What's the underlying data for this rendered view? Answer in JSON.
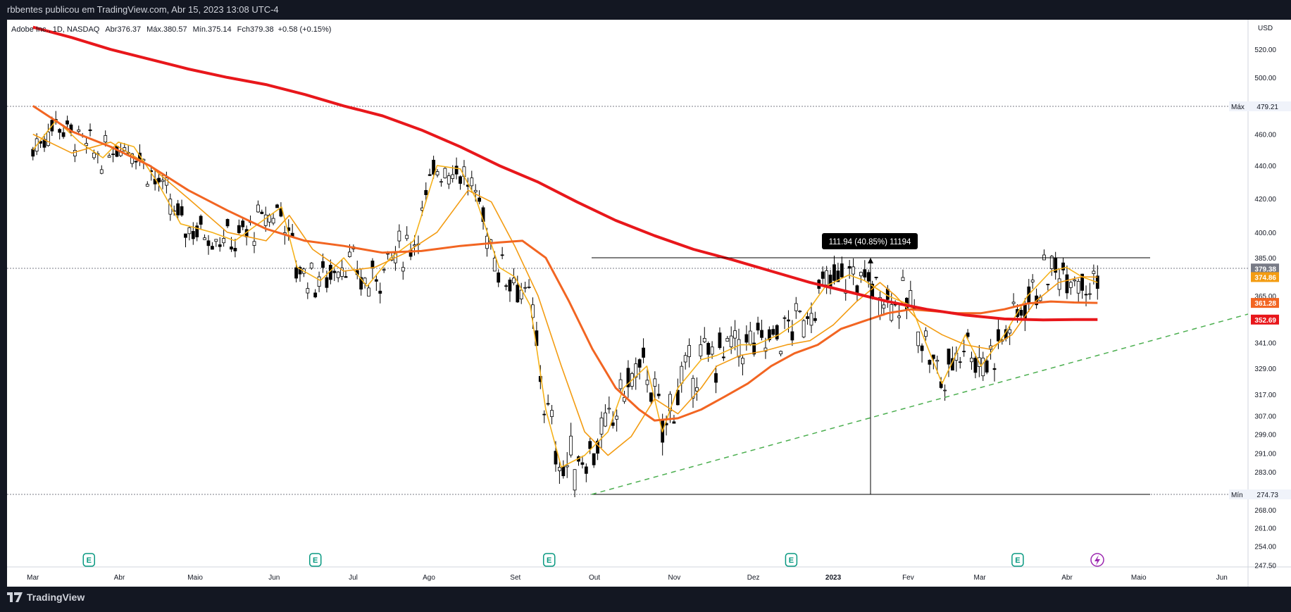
{
  "header": {
    "publisher_line": "rbbentes publicou em TradingView.com, Abr 15, 2023 13:08 UTC-4"
  },
  "legend": {
    "symbol": "Adobe Inc., 1D, NASDAQ",
    "open": "Abr376.37",
    "high": "Máx.380.57",
    "low": "Mín.375.14",
    "close": "Fch379.38",
    "change": "+0.58 (+0.15%)"
  },
  "footer": {
    "brand": "TradingView"
  },
  "colors": {
    "background": "#131722",
    "plot_background": "#ffffff",
    "candle": "#000000",
    "ma_fast": "#f5b21b",
    "ma_mid": "#f39c12",
    "ma_slow": "#f26522",
    "ma_long": "#e8171b",
    "trendline": "#4caf50",
    "earnings": "#089981",
    "dividend": "#9c27b0"
  },
  "chart_data": {
    "type": "candlestick",
    "currency_label": "USD",
    "y_ticks": [
      "520.00",
      "500.00",
      "460.00",
      "440.00",
      "420.00",
      "400.00",
      "385.00",
      "365.00",
      "341.00",
      "329.00",
      "317.00",
      "307.00",
      "299.00",
      "291.00",
      "283.00",
      "268.00",
      "261.00",
      "254.00",
      "247.50"
    ],
    "y_tick_values": [
      520,
      500,
      460,
      440,
      420,
      400,
      385,
      365,
      341,
      329,
      317,
      307,
      299,
      291,
      283,
      268,
      261,
      254,
      247.5
    ],
    "x_ticks": [
      "Mar",
      "Abr",
      "Maio",
      "Jun",
      "Jul",
      "Ago",
      "Set",
      "Out",
      "Nov",
      "Dez",
      "2023",
      "Fev",
      "Mar",
      "Abr",
      "Maio",
      "Jun"
    ],
    "max_label": "Máx",
    "max_value": "479.21",
    "min_label": "Mín",
    "min_value": "274.73",
    "price_labels": [
      {
        "value": "379.38",
        "color": "#787b86"
      },
      {
        "value": "374.86",
        "color": "#f39c12"
      },
      {
        "value": "361.28",
        "color": "#f26522"
      },
      {
        "value": "352.69",
        "color": "#e8171b"
      }
    ],
    "measure_label": "111.94 (40.85%) 11194",
    "earnings_marker": "E",
    "earnings_dates": [
      "Mar",
      "Jun",
      "Set",
      "Dez",
      "Mar"
    ],
    "moving_averages": [
      {
        "key": "ma_fast",
        "width": 1.6,
        "points": [
          [
            0,
            450
          ],
          [
            0.03,
            470
          ],
          [
            0.06,
            455
          ],
          [
            0.09,
            445
          ],
          [
            0.11,
            455
          ],
          [
            0.13,
            452
          ],
          [
            0.16,
            430
          ],
          [
            0.19,
            405
          ],
          [
            0.23,
            400
          ],
          [
            0.26,
            395
          ],
          [
            0.29,
            405
          ],
          [
            0.32,
            415
          ],
          [
            0.34,
            380
          ],
          [
            0.37,
            373
          ],
          [
            0.4,
            385
          ],
          [
            0.43,
            370
          ],
          [
            0.46,
            385
          ],
          [
            0.49,
            395
          ],
          [
            0.52,
            440
          ],
          [
            0.55,
            438
          ],
          [
            0.57,
            420
          ],
          [
            0.6,
            380
          ],
          [
            0.62,
            375
          ],
          [
            0.64,
            360
          ],
          [
            0.66,
            310
          ],
          [
            0.68,
            285
          ],
          [
            0.71,
            290
          ],
          [
            0.74,
            300
          ],
          [
            0.76,
            320
          ],
          [
            0.79,
            330
          ],
          [
            0.81,
            300
          ],
          [
            0.83,
            320
          ],
          [
            0.86,
            333
          ],
          [
            0.88,
            335
          ],
          [
            0.91,
            340
          ],
          [
            0.93,
            340
          ],
          [
            0.96,
            345
          ],
          [
            0.99,
            353
          ],
          [
            1.02,
            370
          ],
          [
            1.05,
            376
          ],
          [
            1.07,
            373
          ],
          [
            1.1,
            365
          ],
          [
            1.13,
            360
          ],
          [
            1.15,
            340
          ],
          [
            1.17,
            322
          ],
          [
            1.2,
            345
          ],
          [
            1.22,
            330
          ],
          [
            1.25,
            345
          ],
          [
            1.28,
            365
          ],
          [
            1.31,
            378
          ],
          [
            1.33,
            380
          ],
          [
            1.35,
            375
          ],
          [
            1.37,
            372
          ]
        ]
      },
      {
        "key": "ma_mid",
        "width": 1.6,
        "points": [
          [
            0,
            460
          ],
          [
            0.05,
            448
          ],
          [
            0.1,
            455
          ],
          [
            0.15,
            440
          ],
          [
            0.2,
            420
          ],
          [
            0.25,
            400
          ],
          [
            0.3,
            395
          ],
          [
            0.33,
            410
          ],
          [
            0.36,
            390
          ],
          [
            0.4,
            378
          ],
          [
            0.44,
            380
          ],
          [
            0.48,
            388
          ],
          [
            0.52,
            400
          ],
          [
            0.56,
            425
          ],
          [
            0.59,
            418
          ],
          [
            0.62,
            392
          ],
          [
            0.65,
            365
          ],
          [
            0.68,
            330
          ],
          [
            0.71,
            300
          ],
          [
            0.74,
            290
          ],
          [
            0.77,
            298
          ],
          [
            0.8,
            315
          ],
          [
            0.83,
            308
          ],
          [
            0.86,
            320
          ],
          [
            0.88,
            330
          ],
          [
            0.91,
            335
          ],
          [
            0.94,
            337
          ],
          [
            0.97,
            340
          ],
          [
            1.0,
            342
          ],
          [
            1.03,
            350
          ],
          [
            1.06,
            362
          ],
          [
            1.09,
            372
          ],
          [
            1.11,
            365
          ],
          [
            1.14,
            352
          ],
          [
            1.17,
            345
          ],
          [
            1.2,
            340
          ],
          [
            1.23,
            338
          ],
          [
            1.26,
            345
          ],
          [
            1.29,
            362
          ],
          [
            1.32,
            372
          ],
          [
            1.35,
            375
          ],
          [
            1.37,
            374.86
          ]
        ]
      },
      {
        "key": "ma_slow",
        "width": 3,
        "points": [
          [
            0,
            480
          ],
          [
            0.05,
            462
          ],
          [
            0.1,
            452
          ],
          [
            0.15,
            440
          ],
          [
            0.2,
            425
          ],
          [
            0.25,
            413
          ],
          [
            0.3,
            402
          ],
          [
            0.35,
            395
          ],
          [
            0.4,
            392
          ],
          [
            0.45,
            388
          ],
          [
            0.5,
            389
          ],
          [
            0.55,
            392
          ],
          [
            0.6,
            394
          ],
          [
            0.63,
            395
          ],
          [
            0.66,
            385
          ],
          [
            0.69,
            362
          ],
          [
            0.72,
            338
          ],
          [
            0.75,
            320
          ],
          [
            0.78,
            310
          ],
          [
            0.8,
            305
          ],
          [
            0.83,
            306
          ],
          [
            0.86,
            310
          ],
          [
            0.89,
            316
          ],
          [
            0.92,
            322
          ],
          [
            0.95,
            330
          ],
          [
            0.98,
            336
          ],
          [
            1.01,
            340
          ],
          [
            1.04,
            348
          ],
          [
            1.07,
            352
          ],
          [
            1.1,
            356
          ],
          [
            1.13,
            358
          ],
          [
            1.16,
            357
          ],
          [
            1.19,
            356
          ],
          [
            1.22,
            356
          ],
          [
            1.25,
            358
          ],
          [
            1.28,
            361
          ],
          [
            1.31,
            362
          ],
          [
            1.34,
            361.5
          ],
          [
            1.37,
            361.28
          ]
        ]
      },
      {
        "key": "ma_long",
        "width": 4,
        "points": [
          [
            0,
            535
          ],
          [
            0.05,
            528
          ],
          [
            0.1,
            520
          ],
          [
            0.15,
            513
          ],
          [
            0.2,
            506
          ],
          [
            0.25,
            500
          ],
          [
            0.3,
            495
          ],
          [
            0.35,
            488
          ],
          [
            0.4,
            480
          ],
          [
            0.45,
            473
          ],
          [
            0.5,
            463
          ],
          [
            0.55,
            452
          ],
          [
            0.6,
            440
          ],
          [
            0.65,
            430
          ],
          [
            0.7,
            418
          ],
          [
            0.75,
            407
          ],
          [
            0.8,
            398
          ],
          [
            0.85,
            390
          ],
          [
            0.9,
            384
          ],
          [
            0.95,
            378
          ],
          [
            1.0,
            372
          ],
          [
            1.05,
            367
          ],
          [
            1.1,
            362
          ],
          [
            1.15,
            358
          ],
          [
            1.2,
            355
          ],
          [
            1.25,
            353
          ],
          [
            1.3,
            352.5
          ],
          [
            1.34,
            352.7
          ],
          [
            1.37,
            352.69
          ]
        ]
      }
    ],
    "candles_ohlc_sample": "Adobe Inc. daily candles Mar 2022 - Abr 2023 rendered from generated series"
  }
}
